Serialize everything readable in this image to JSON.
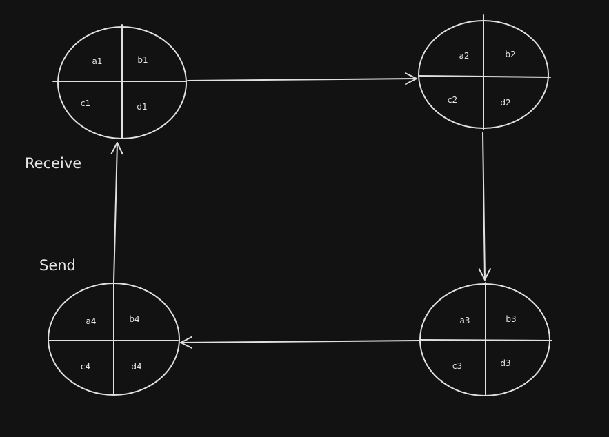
{
  "diagram": {
    "colors": {
      "background": "#121212",
      "stroke": "#e0e0e0",
      "text": "#e6e6e6"
    },
    "nodes": [
      {
        "id": "node-1",
        "fill": "#5a2d2d",
        "labels": [
          "a1",
          "b1",
          "c1",
          "d1"
        ]
      },
      {
        "id": "node-2",
        "fill": "#0b3d12",
        "labels": [
          "a2",
          "b2",
          "c2",
          "d2"
        ]
      },
      {
        "id": "node-3",
        "fill": "#3a2a06",
        "labels": [
          "a3",
          "b3",
          "c3",
          "d3"
        ]
      },
      {
        "id": "node-4",
        "fill": "#163f63",
        "labels": [
          "a4",
          "b4",
          "c4",
          "d4"
        ]
      }
    ],
    "side_labels": {
      "receive": "Receive",
      "send": "Send"
    }
  }
}
